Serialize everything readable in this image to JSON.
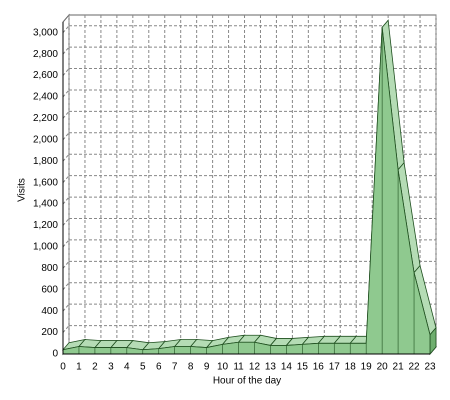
{
  "chart_data": {
    "type": "area3d",
    "x_label": "Hour of the day",
    "y_label": "Visits",
    "x": [
      0,
      1,
      2,
      3,
      4,
      5,
      6,
      7,
      8,
      9,
      10,
      11,
      12,
      13,
      14,
      15,
      16,
      17,
      18,
      19,
      20,
      21,
      22,
      23
    ],
    "values": [
      40,
      70,
      60,
      60,
      60,
      40,
      50,
      70,
      70,
      60,
      90,
      110,
      110,
      80,
      80,
      90,
      100,
      100,
      100,
      100,
      3050,
      1720,
      760,
      180
    ],
    "color": "#8fc98f",
    "xlim": [
      0,
      23
    ],
    "xticks": [
      0,
      1,
      2,
      3,
      4,
      5,
      6,
      7,
      8,
      9,
      10,
      11,
      12,
      13,
      14,
      15,
      16,
      17,
      18,
      19,
      20,
      21,
      22,
      23
    ],
    "ylim": [
      0,
      3100
    ],
    "yticks": [
      0,
      200,
      400,
      600,
      800,
      {
        "value": 1000,
        "label": "1,000"
      },
      {
        "value": 1200,
        "label": "1,200"
      },
      {
        "value": 1400,
        "label": "1,400"
      },
      {
        "value": 1600,
        "label": "1,600"
      },
      {
        "value": 1800,
        "label": "1,800"
      },
      {
        "value": 2000,
        "label": "2,000"
      },
      {
        "value": 2200,
        "label": "2,200"
      },
      {
        "value": 2400,
        "label": "2,400"
      },
      {
        "value": 2600,
        "label": "2,600"
      },
      {
        "value": 2800,
        "label": "2,800"
      },
      {
        "value": 3000,
        "label": "3,000"
      }
    ],
    "grid": true
  }
}
